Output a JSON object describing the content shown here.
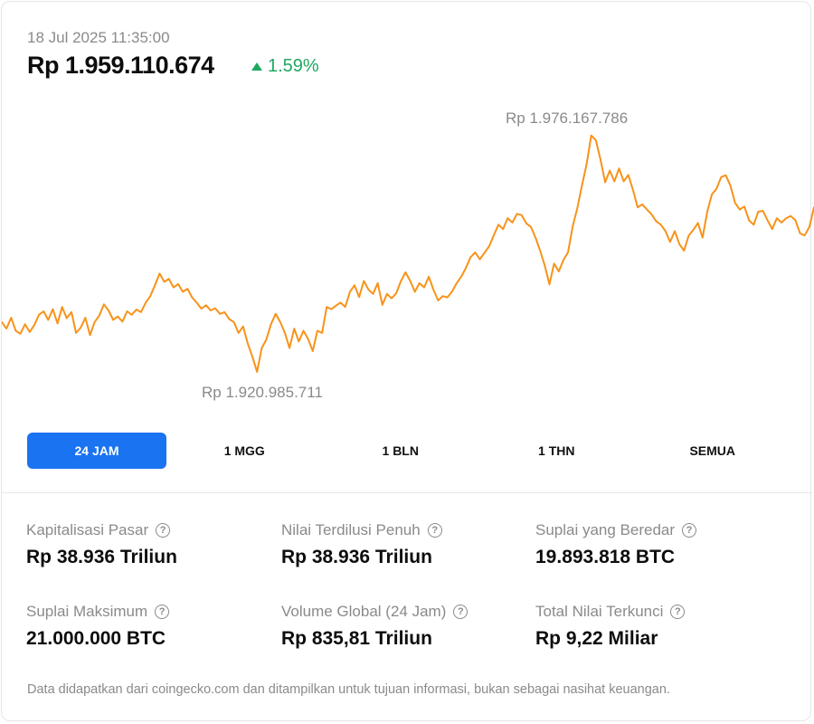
{
  "header": {
    "timestamp": "18 Jul 2025 11:35:00",
    "price": "Rp 1.959.110.674",
    "change": "1.59%"
  },
  "chart_data": {
    "type": "line",
    "color": "#f7931a",
    "max_label": "Rp 1.976.167.786",
    "min_label": "Rp 1.920.985.711",
    "max_value": 1976167786,
    "min_value": 1920985711,
    "values": [
      1932.5,
      1931.0,
      1933.5,
      1930.5,
      1929.8,
      1932.0,
      1930.2,
      1931.8,
      1934.2,
      1935.0,
      1933.0,
      1935.5,
      1932.2,
      1936.0,
      1933.4,
      1934.8,
      1930.0,
      1931.2,
      1933.5,
      1929.5,
      1932.5,
      1934.0,
      1936.6,
      1935.2,
      1933.0,
      1933.8,
      1932.6,
      1935.0,
      1934.2,
      1935.4,
      1934.8,
      1937.0,
      1938.5,
      1941.0,
      1943.7,
      1941.8,
      1942.5,
      1940.5,
      1941.3,
      1939.5,
      1940.2,
      1938.2,
      1937.0,
      1935.6,
      1936.4,
      1935.2,
      1935.7,
      1934.4,
      1934.8,
      1933.2,
      1932.5,
      1930.0,
      1931.5,
      1927.5,
      1924.5,
      1921.0,
      1926.5,
      1928.5,
      1932.0,
      1934.4,
      1932.5,
      1930.0,
      1926.5,
      1931.0,
      1928.0,
      1930.5,
      1928.6,
      1925.8,
      1930.5,
      1930.0,
      1936.0,
      1935.5,
      1936.3,
      1937.0,
      1936.0,
      1939.5,
      1941.0,
      1938.3,
      1942.0,
      1940.0,
      1939.0,
      1941.5,
      1936.5,
      1939.0,
      1938.0,
      1939.2,
      1942.0,
      1944.0,
      1942.0,
      1939.5,
      1941.5,
      1940.5,
      1943.0,
      1940.0,
      1937.5,
      1938.5,
      1938.2,
      1939.5,
      1941.5,
      1943.0,
      1945.0,
      1947.5,
      1948.6,
      1947.0,
      1948.5,
      1950.0,
      1952.5,
      1955.0,
      1954.0,
      1956.5,
      1955.5,
      1957.5,
      1957.2,
      1955.3,
      1954.5,
      1952.0,
      1949.0,
      1945.5,
      1941.2,
      1946.0,
      1944.2,
      1946.8,
      1948.6,
      1954.6,
      1958.8,
      1964.0,
      1969.0,
      1975.6,
      1974.5,
      1970.0,
      1964.8,
      1967.5,
      1965.0,
      1968.0,
      1965.0,
      1966.5,
      1963.0,
      1959.0,
      1959.7,
      1958.5,
      1957.4,
      1955.8,
      1955.0,
      1953.5,
      1951.0,
      1953.5,
      1950.5,
      1949.0,
      1952.5,
      1953.8,
      1955.4,
      1952.0,
      1958.0,
      1962.0,
      1963.3,
      1966.0,
      1966.4,
      1964.0,
      1960.0,
      1958.5,
      1959.2,
      1956.0,
      1955.0,
      1958.0,
      1958.2,
      1956.0,
      1954.0,
      1956.5,
      1955.5,
      1956.5,
      1957.0,
      1956.0,
      1953.0,
      1952.5,
      1954.5,
      1959.0
    ]
  },
  "tabs": [
    {
      "label": "24 JAM",
      "active": true
    },
    {
      "label": "1 MGG",
      "active": false
    },
    {
      "label": "1 BLN",
      "active": false
    },
    {
      "label": "1 THN",
      "active": false
    },
    {
      "label": "SEMUA",
      "active": false
    }
  ],
  "stats": [
    {
      "label": "Kapitalisasi Pasar",
      "value": "Rp 38.936 Triliun"
    },
    {
      "label": "Nilai Terdilusi Penuh",
      "value": "Rp 38.936 Triliun"
    },
    {
      "label": "Suplai yang Beredar",
      "value": "19.893.818 BTC"
    },
    {
      "label": "Suplai Maksimum",
      "value": "21.000.000 BTC"
    },
    {
      "label": "Volume Global (24 Jam)",
      "value": "Rp 835,81 Triliun"
    },
    {
      "label": "Total Nilai Terkunci",
      "value": "Rp 9,22 Miliar"
    }
  ],
  "footnote": "Data didapatkan dari coingecko.com dan ditampilkan untuk tujuan informasi, bukan sebagai nasihat keuangan.",
  "icons": {
    "help": "?"
  }
}
